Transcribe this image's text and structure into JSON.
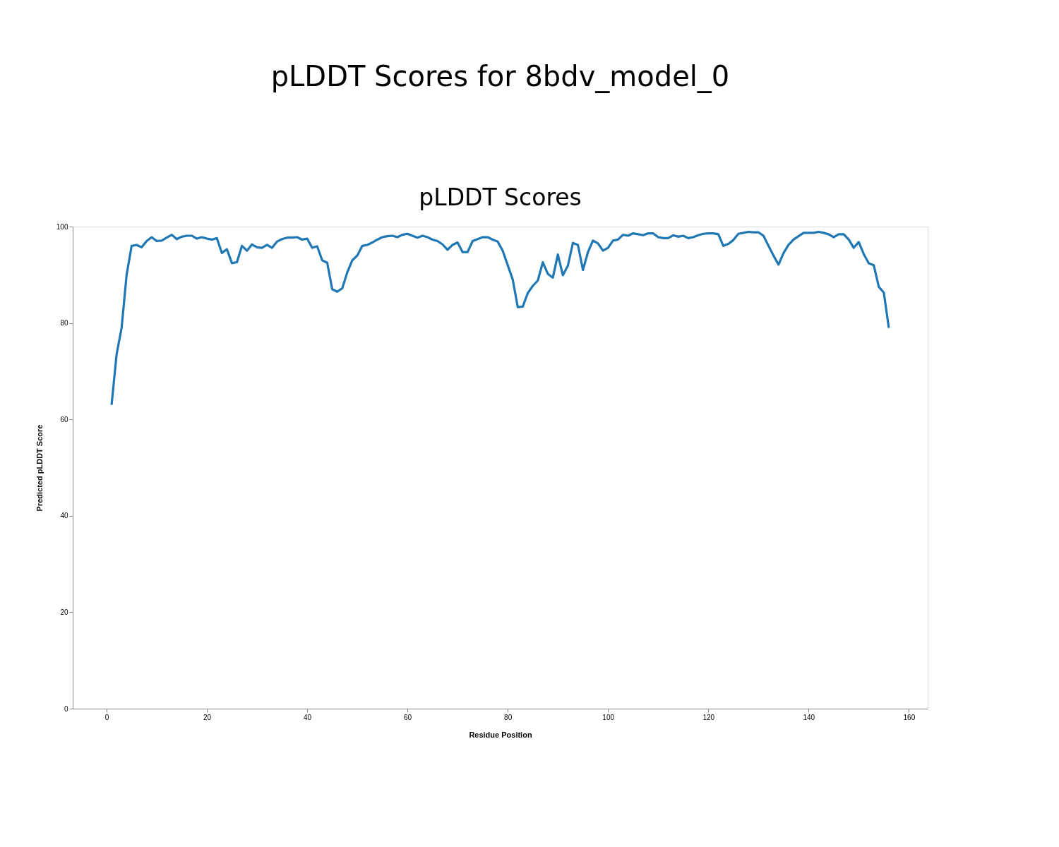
{
  "chart_data": {
    "type": "line",
    "title": "pLDDT Scores for 8bdv_model_0",
    "subtitle": "pLDDT Scores",
    "xlabel": "Residue Position",
    "ylabel": "Predicted pLDDT Score",
    "x": [
      1,
      2,
      3,
      4,
      5,
      6,
      7,
      8,
      9,
      10,
      11,
      12,
      13,
      14,
      15,
      16,
      17,
      18,
      19,
      20,
      21,
      22,
      23,
      24,
      25,
      26,
      27,
      28,
      29,
      30,
      31,
      32,
      33,
      34,
      35,
      36,
      37,
      38,
      39,
      40,
      41,
      42,
      43,
      44,
      45,
      46,
      47,
      48,
      49,
      50,
      51,
      52,
      53,
      54,
      55,
      56,
      57,
      58,
      59,
      60,
      61,
      62,
      63,
      64,
      65,
      66,
      67,
      68,
      69,
      70,
      71,
      72,
      73,
      74,
      75,
      76,
      77,
      78,
      79,
      80,
      81,
      82,
      83,
      84,
      85,
      86,
      87,
      88,
      89,
      90,
      91,
      92,
      93,
      94,
      95,
      96,
      97,
      98,
      99,
      100,
      101,
      102,
      103,
      104,
      105,
      106,
      107,
      108,
      109,
      110,
      111,
      112,
      113,
      114,
      115,
      116,
      117,
      118,
      119,
      120,
      121,
      122,
      123,
      124,
      125,
      126,
      127,
      128,
      129,
      130,
      131,
      132,
      133,
      134,
      135,
      136,
      137,
      138,
      139,
      140,
      141,
      142,
      143,
      144,
      145,
      146,
      147,
      148,
      149,
      150,
      151,
      152,
      153,
      154,
      155,
      156
    ],
    "series": [
      {
        "color": "#1f77b4",
        "line_style": "solid",
        "marker": "none",
        "values": [
          63,
          73.5,
          79,
          90,
          96,
          96.2,
          95.7,
          97,
          97.8,
          97,
          97.1,
          97.7,
          98.3,
          97.4,
          97.9,
          98.1,
          98.1,
          97.5,
          97.8,
          97.5,
          97.3,
          97.6,
          94.5,
          95.3,
          92.4,
          92.6,
          96,
          95,
          96.3,
          95.7,
          95.6,
          96.2,
          95.6,
          96.9,
          97.4,
          97.7,
          97.7,
          97.8,
          97.3,
          97.5,
          95.6,
          95.9,
          93,
          92.5,
          87,
          86.5,
          87.2,
          90.5,
          93,
          94,
          96,
          96.2,
          96.7,
          97.3,
          97.8,
          98,
          98.1,
          97.8,
          98.3,
          98.5,
          98.1,
          97.7,
          98.1,
          97.8,
          97.3,
          97,
          96.3,
          95.2,
          96.2,
          96.7,
          94.7,
          94.7,
          97,
          97.4,
          97.8,
          97.8,
          97.3,
          96.9,
          95,
          92,
          89,
          83.3,
          83.4,
          86.2,
          87.7,
          88.8,
          92.6,
          90.2,
          89.4,
          94.2,
          89.9,
          91.9,
          96.6,
          96.2,
          91,
          94.7,
          97.1,
          96.5,
          95,
          95.6,
          97.1,
          97.3,
          98.3,
          98.1,
          98.6,
          98.4,
          98.2,
          98.6,
          98.6,
          97.8,
          97.6,
          97.6,
          98.2,
          97.9,
          98.1,
          97.6,
          97.8,
          98.2,
          98.5,
          98.6,
          98.6,
          98.4,
          96,
          96.4,
          97.2,
          98.5,
          98.7,
          98.9,
          98.8,
          98.8,
          98.1,
          96,
          94,
          92.1,
          94.5,
          96.2,
          97.3,
          98,
          98.7,
          98.7,
          98.7,
          98.9,
          98.7,
          98.4,
          97.8,
          98.4,
          98.4,
          97.3,
          95.6,
          96.8,
          94.3,
          92.4,
          92,
          87.5,
          86.3,
          79
        ]
      }
    ],
    "xlim": [
      -6.75,
      163.75
    ],
    "ylim": [
      0,
      100
    ],
    "xticks": [
      0,
      20,
      40,
      60,
      80,
      100,
      120,
      140,
      160
    ],
    "yticks": [
      0,
      20,
      40,
      60,
      80,
      100
    ],
    "grid": false,
    "legend": false
  }
}
